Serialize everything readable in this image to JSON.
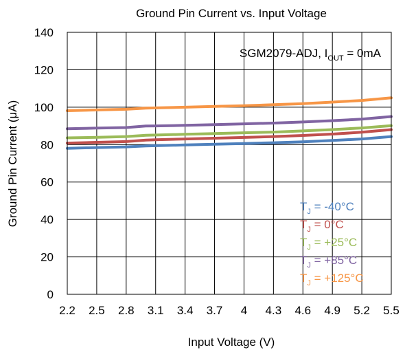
{
  "chart_data": {
    "type": "line",
    "title": "Ground Pin Current vs. Input Voltage",
    "xlabel": "Input Voltage (V)",
    "ylabel": "Ground Pin Current (μA)",
    "annotation": {
      "main": "SGM2079-ADJ, I",
      "sub": "OUT",
      "tail": " = 0mA"
    },
    "xlim": [
      2.2,
      5.5
    ],
    "ylim": [
      0,
      140
    ],
    "x_ticks": [
      "2.2",
      "2.5",
      "2.8",
      "3.1",
      "3.4",
      "3.7",
      "4",
      "4.3",
      "4.6",
      "4.9",
      "5.2",
      "5.5"
    ],
    "y_ticks": [
      "0",
      "20",
      "40",
      "60",
      "80",
      "100",
      "120",
      "140"
    ],
    "grid": true,
    "legend_position": "bottom-right",
    "x": [
      2.2,
      2.5,
      2.8,
      3.0,
      3.1,
      3.4,
      3.7,
      4.0,
      4.3,
      4.6,
      4.9,
      5.2,
      5.5
    ],
    "series": [
      {
        "name": "T",
        "sub": "J",
        "suffix": " = -40°C",
        "color": "#4f81bd",
        "values": [
          78.0,
          78.4,
          78.8,
          79.3,
          79.4,
          79.8,
          80.2,
          80.6,
          81.0,
          81.5,
          82.2,
          83.0,
          84.3
        ]
      },
      {
        "name": "T",
        "sub": "J",
        "suffix": " = 0°C",
        "color": "#c0504d",
        "values": [
          80.8,
          81.2,
          81.6,
          82.4,
          82.6,
          83.0,
          83.4,
          83.8,
          84.3,
          84.9,
          85.6,
          86.6,
          88.0
        ]
      },
      {
        "name": "T",
        "sub": "J",
        "suffix": " = +25°C",
        "color": "#9bbb59",
        "values": [
          83.6,
          83.9,
          84.3,
          85.0,
          85.1,
          85.5,
          85.9,
          86.3,
          86.7,
          87.3,
          88.0,
          88.9,
          90.1
        ]
      },
      {
        "name": "T",
        "sub": "J",
        "suffix": " = +85°C",
        "color": "#8064a2",
        "values": [
          88.5,
          88.8,
          89.1,
          89.9,
          90.0,
          90.3,
          90.7,
          91.1,
          91.5,
          92.1,
          92.8,
          93.6,
          95.0
        ]
      },
      {
        "name": "T",
        "sub": "J",
        "suffix": " = +125°C",
        "color": "#f79646",
        "values": [
          98.1,
          98.5,
          98.9,
          99.5,
          99.6,
          100.0,
          100.4,
          100.8,
          101.3,
          101.9,
          102.7,
          103.6,
          105.0
        ]
      }
    ]
  }
}
